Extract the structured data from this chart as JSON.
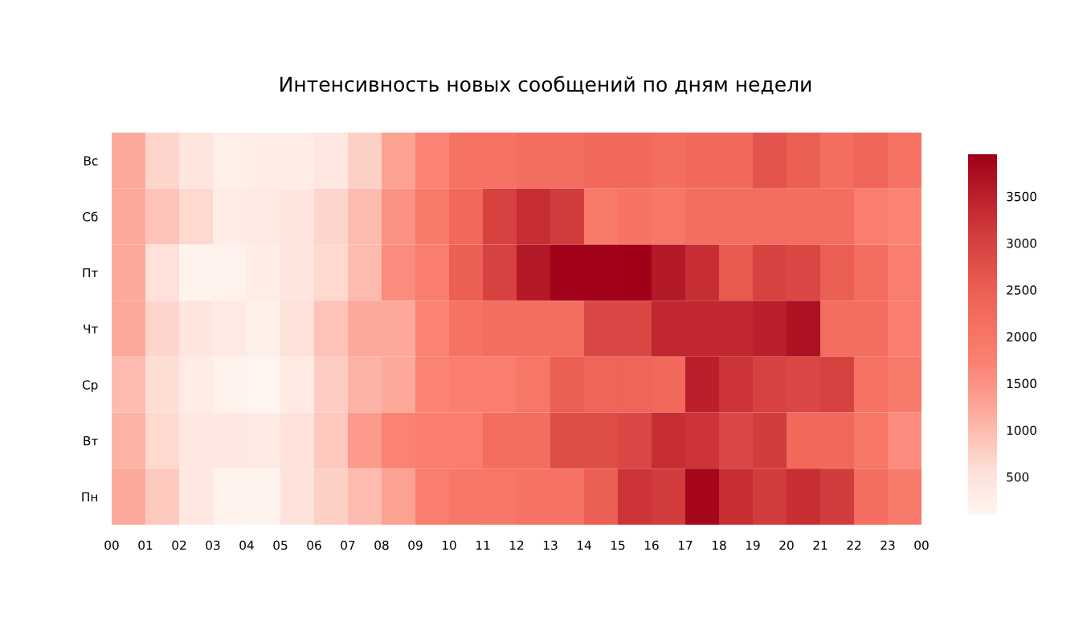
{
  "chart_data": {
    "type": "heatmap",
    "title": "Интенсивность новых сообщений по дням недели",
    "xlim": [
      0,
      24
    ],
    "xticks": [
      {
        "value": 0,
        "label": "00"
      },
      {
        "value": 1,
        "label": "01"
      },
      {
        "value": 2,
        "label": "02"
      },
      {
        "value": 3,
        "label": "03"
      },
      {
        "value": 4,
        "label": "04"
      },
      {
        "value": 5,
        "label": "05"
      },
      {
        "value": 6,
        "label": "06"
      },
      {
        "value": 7,
        "label": "07"
      },
      {
        "value": 8,
        "label": "08"
      },
      {
        "value": 9,
        "label": "09"
      },
      {
        "value": 10,
        "label": "10"
      },
      {
        "value": 11,
        "label": "11"
      },
      {
        "value": 12,
        "label": "12"
      },
      {
        "value": 13,
        "label": "13"
      },
      {
        "value": 14,
        "label": "14"
      },
      {
        "value": 15,
        "label": "15"
      },
      {
        "value": 16,
        "label": "16"
      },
      {
        "value": 17,
        "label": "17"
      },
      {
        "value": 18,
        "label": "18"
      },
      {
        "value": 19,
        "label": "19"
      },
      {
        "value": 20,
        "label": "20"
      },
      {
        "value": 21,
        "label": "21"
      },
      {
        "value": 22,
        "label": "22"
      },
      {
        "value": 23,
        "label": "23"
      },
      {
        "value": 24,
        "label": "00"
      }
    ],
    "y_categories": [
      "Вс",
      "Сб",
      "Пт",
      "Чт",
      "Ср",
      "Вт",
      "Пн"
    ],
    "cells": [
      [
        1200,
        700,
        450,
        250,
        300,
        300,
        400,
        750,
        1300,
        1700,
        2100,
        2100,
        2200,
        2200,
        2300,
        2300,
        2200,
        2300,
        2300,
        2700,
        2500,
        2200,
        2400,
        2100
      ],
      [
        1200,
        900,
        650,
        300,
        350,
        450,
        700,
        1000,
        1500,
        1900,
        2300,
        3000,
        3300,
        3100,
        1900,
        2100,
        2000,
        2200,
        2200,
        2200,
        2200,
        2200,
        1800,
        1700
      ],
      [
        1200,
        550,
        150,
        200,
        300,
        450,
        650,
        1000,
        1600,
        1800,
        2500,
        3000,
        3600,
        3900,
        3900,
        3950,
        3600,
        3300,
        2600,
        3000,
        2900,
        2500,
        2200,
        1800
      ],
      [
        1200,
        700,
        450,
        350,
        250,
        550,
        900,
        1200,
        1200,
        1700,
        2100,
        2200,
        2200,
        2200,
        2900,
        2900,
        3400,
        3400,
        3400,
        3500,
        3700,
        2200,
        2200,
        1800
      ],
      [
        1000,
        600,
        300,
        200,
        120,
        350,
        800,
        1100,
        1200,
        1700,
        1800,
        1800,
        2000,
        2500,
        2400,
        2400,
        2300,
        3500,
        3200,
        3000,
        2900,
        3000,
        2100,
        1900
      ],
      [
        1100,
        650,
        400,
        400,
        350,
        550,
        850,
        1400,
        1700,
        1800,
        1800,
        2200,
        2200,
        2800,
        2800,
        2900,
        3300,
        3200,
        2900,
        3100,
        2300,
        2300,
        2000,
        1600
      ],
      [
        1200,
        850,
        400,
        200,
        150,
        500,
        750,
        1000,
        1300,
        1800,
        1950,
        2000,
        2100,
        2100,
        2500,
        3200,
        3100,
        3850,
        3300,
        3100,
        3300,
        3100,
        2200,
        1900
      ]
    ],
    "clim": [
      100,
      3950
    ],
    "cticks": [
      500,
      1000,
      1500,
      2000,
      2500,
      3000,
      3500
    ]
  }
}
